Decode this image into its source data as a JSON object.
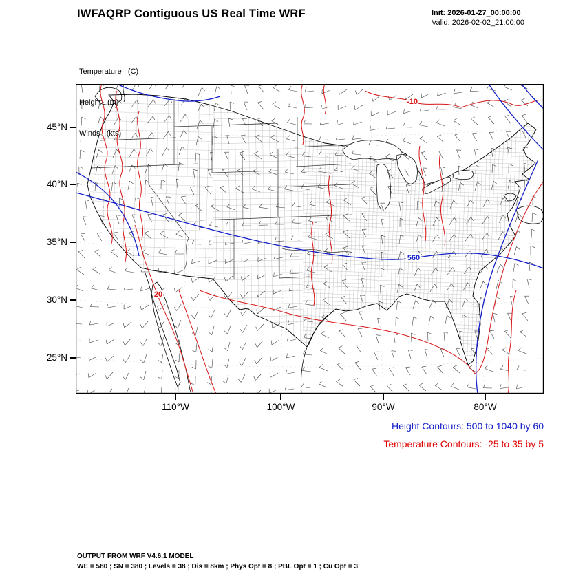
{
  "header": {
    "title": "IWFAQRP Contiguous US Real Time WRF",
    "init": "Init: 2026-01-27_00:00:00",
    "valid": "Valid: 2026-02-02_21:00:00"
  },
  "field_legend": {
    "temperature": "Temperature   (C)",
    "height": "Height   (m)",
    "winds": "Winds   (kts)"
  },
  "axes": {
    "y_tick_labels": [
      "45°N",
      "40°N",
      "35°N",
      "30°N",
      "25°N"
    ],
    "x_tick_labels": [
      "110°W",
      "100°W",
      "90°W",
      "80°W"
    ]
  },
  "contour_labels": [
    {
      "text": "-10",
      "field": "temperature"
    },
    {
      "text": "20",
      "field": "temperature"
    },
    {
      "text": "560",
      "field": "height"
    }
  ],
  "captions": {
    "height": "Height Contours: 500 to 1040 by 60",
    "temperature": "Temperature Contours: -25 to 35 by 5"
  },
  "footer": {
    "line1": "OUTPUT FROM WRF V4.6.1 MODEL",
    "line2": "WE = 580 ; SN = 380 ; Levels = 38 ; Dis = 8km ; Phys Opt = 8 ; PBL Opt = 1 ; Cu Opt = 3"
  },
  "colors": {
    "height_contour": "#1420c8",
    "temperature_contour": "#d81414",
    "height_caption": "#1420c8",
    "temperature_caption": "#e00000",
    "county_line": "#8a8a8a",
    "wind_barb": "#222222"
  },
  "chart_data": {
    "type": "map",
    "region": "Contiguous United States (WRF model domain)",
    "x_axis": {
      "label": "longitude",
      "ticks": [
        "110°W",
        "100°W",
        "90°W",
        "80°W"
      ]
    },
    "y_axis": {
      "label": "latitude",
      "ticks": [
        "25°N",
        "30°N",
        "35°N",
        "40°N",
        "45°N"
      ]
    },
    "fields": [
      {
        "name": "Temperature",
        "units": "C",
        "style": "red contour lines",
        "min": -25,
        "max": 35,
        "interval": 5,
        "visible_labels": [
          -10,
          20
        ]
      },
      {
        "name": "Height",
        "units": "m",
        "style": "blue contour lines",
        "min": 500,
        "max": 1040,
        "interval": 60,
        "visible_labels": [
          560
        ]
      },
      {
        "name": "Winds",
        "units": "kts",
        "style": "wind barbs over full domain"
      }
    ],
    "basemap": "US state and county boundaries, neighboring coastlines",
    "init_time": "2026-01-27_00:00:00",
    "valid_time": "2026-02-02_21:00:00"
  }
}
